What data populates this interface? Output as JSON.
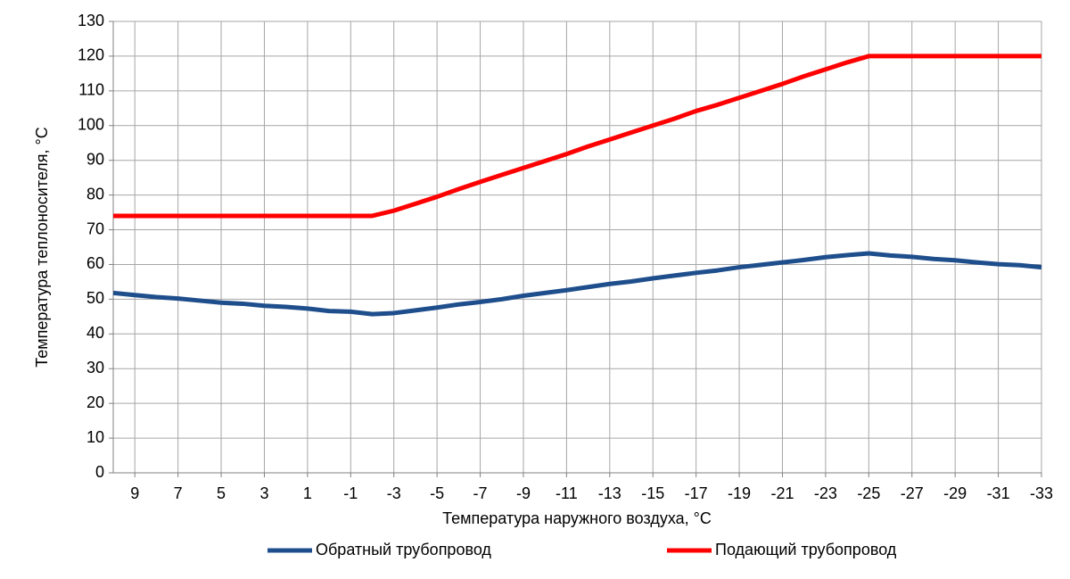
{
  "chart_data": {
    "type": "line",
    "x_label": "Температура наружного воздуха, °С",
    "y_label": "Температура теплоносителя, °С",
    "x": [
      10,
      9,
      8,
      7,
      6,
      5,
      4,
      3,
      2,
      1,
      0,
      -1,
      -2,
      -3,
      -4,
      -5,
      -6,
      -7,
      -8,
      -9,
      -10,
      -11,
      -12,
      -13,
      -14,
      -15,
      -16,
      -17,
      -18,
      -19,
      -20,
      -21,
      -22,
      -23,
      -24,
      -25,
      -26,
      -27,
      -28,
      -29,
      -30,
      -31,
      -32,
      -33
    ],
    "series": [
      {
        "name": "Обратный трубопровод",
        "color": "#1f4e8c",
        "values": [
          51.8,
          51.2,
          50.6,
          50.2,
          49.6,
          49.0,
          48.7,
          48.1,
          47.8,
          47.3,
          46.6,
          46.4,
          45.7,
          46.0,
          46.8,
          47.6,
          48.5,
          49.2,
          50.0,
          51.0,
          51.8,
          52.6,
          53.5,
          54.4,
          55.1,
          56.0,
          56.8,
          57.6,
          58.3,
          59.2,
          59.9,
          60.6,
          61.3,
          62.1,
          62.7,
          63.2,
          62.6,
          62.2,
          61.6,
          61.2,
          60.6,
          60.1,
          59.8,
          59.2
        ]
      },
      {
        "name": "Подающий трубопровод",
        "color": "#ff0000",
        "values": [
          74,
          74,
          74,
          74,
          74,
          74,
          74,
          74,
          74,
          74,
          74,
          74,
          74,
          75.5,
          77.5,
          79.5,
          81.7,
          83.8,
          85.8,
          87.8,
          89.8,
          91.8,
          94,
          96,
          98,
          100,
          102,
          104.2,
          106,
          108,
          110,
          112,
          114.2,
          116.2,
          118.2,
          120,
          120,
          120,
          120,
          120,
          120,
          120,
          120,
          120
        ]
      }
    ],
    "xlim": [
      10,
      -33
    ],
    "xticks": [
      9,
      7,
      5,
      3,
      1,
      -1,
      -3,
      -5,
      -7,
      -9,
      -11,
      -13,
      -15,
      -17,
      -19,
      -21,
      -23,
      -25,
      -27,
      -29,
      -31,
      -33
    ],
    "ylim": [
      0,
      130
    ],
    "yticks": [
      0,
      10,
      20,
      30,
      40,
      50,
      60,
      70,
      80,
      90,
      100,
      110,
      120,
      130
    ],
    "grid": true,
    "legend": "bottom"
  }
}
